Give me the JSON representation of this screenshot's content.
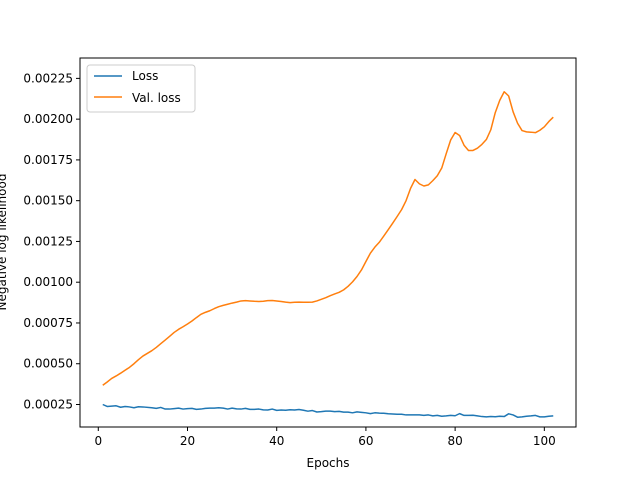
{
  "chart_data": {
    "type": "line",
    "title": "",
    "xlabel": "Epochs",
    "ylabel": "Negative log likelihood",
    "xlim": [
      -4.1,
      107.1
    ],
    "ylim": [
      0.000112,
      0.002375
    ],
    "xticks": [
      0,
      20,
      40,
      60,
      80,
      100
    ],
    "yticks": [
      0.00025,
      0.0005,
      0.00075,
      0.001,
      0.00125,
      0.0015,
      0.00175,
      0.002,
      0.00225
    ],
    "ytick_labels": [
      "0.00025",
      "0.00050",
      "0.00075",
      "0.00100",
      "0.00125",
      "0.00150",
      "0.00175",
      "0.00200",
      "0.00225"
    ],
    "xtick_labels": [
      "0",
      "20",
      "40",
      "60",
      "80",
      "100"
    ],
    "grid": false,
    "legend_position": "top-left",
    "series": [
      {
        "name": "Loss",
        "color": "#1f77b4",
        "points": [
          [
            1,
            0.00025
          ],
          [
            2,
            0.000238
          ],
          [
            3,
            0.00024
          ],
          [
            4,
            0.000242
          ],
          [
            5,
            0.000233
          ],
          [
            6,
            0.000238
          ],
          [
            7,
            0.000235
          ],
          [
            8,
            0.00023
          ],
          [
            9,
            0.000236
          ],
          [
            10,
            0.000235
          ],
          [
            12,
            0.00023
          ],
          [
            13,
            0.000226
          ],
          [
            14,
            0.000232
          ],
          [
            15,
            0.000222
          ],
          [
            16,
            0.000222
          ],
          [
            17,
            0.000225
          ],
          [
            18,
            0.000228
          ],
          [
            19,
            0.000222
          ],
          [
            20,
            0.000225
          ],
          [
            21,
            0.000226
          ],
          [
            22,
            0.00022
          ],
          [
            23,
            0.000222
          ],
          [
            24,
            0.000226
          ],
          [
            25,
            0.000228
          ],
          [
            26,
            0.000228
          ],
          [
            27,
            0.00023
          ],
          [
            28,
            0.000228
          ],
          [
            29,
            0.000222
          ],
          [
            30,
            0.000228
          ],
          [
            31,
            0.000223
          ],
          [
            32,
            0.000222
          ],
          [
            33,
            0.000226
          ],
          [
            34,
            0.00022
          ],
          [
            35,
            0.00022
          ],
          [
            36,
            0.000222
          ],
          [
            37,
            0.000217
          ],
          [
            38,
            0.000216
          ],
          [
            39,
            0.000222
          ],
          [
            40,
            0.000214
          ],
          [
            41,
            0.000216
          ],
          [
            42,
            0.000215
          ],
          [
            43,
            0.000218
          ],
          [
            44,
            0.000216
          ],
          [
            45,
            0.000219
          ],
          [
            46,
            0.000215
          ],
          [
            47,
            0.000209
          ],
          [
            48,
            0.000213
          ],
          [
            49,
            0.000204
          ],
          [
            50,
            0.000206
          ],
          [
            51,
            0.000209
          ],
          [
            52,
            0.000209
          ],
          [
            53,
            0.000206
          ],
          [
            54,
            0.000208
          ],
          [
            55,
            0.000203
          ],
          [
            56,
            0.000203
          ],
          [
            57,
            0.000199
          ],
          [
            58,
            0.000205
          ],
          [
            59,
            0.000202
          ],
          [
            60,
            0.000199
          ],
          [
            61,
            0.000194
          ],
          [
            62,
            0.000199
          ],
          [
            63,
            0.000197
          ],
          [
            64,
            0.000196
          ],
          [
            65,
            0.000193
          ],
          [
            66,
            0.000192
          ],
          [
            67,
            0.00019
          ],
          [
            68,
            0.00019
          ],
          [
            69,
            0.000186
          ],
          [
            70,
            0.000186
          ],
          [
            71,
            0.000186
          ],
          [
            72,
            0.000186
          ],
          [
            73,
            0.000183
          ],
          [
            74,
            0.000186
          ],
          [
            75,
            0.00018
          ],
          [
            76,
            0.000183
          ],
          [
            77,
            0.000178
          ],
          [
            78,
            0.00018
          ],
          [
            79,
            0.000183
          ],
          [
            80,
            0.000181
          ],
          [
            81,
            0.000194
          ],
          [
            82,
            0.000183
          ],
          [
            83,
            0.000183
          ],
          [
            84,
            0.000184
          ],
          [
            85,
            0.00018
          ],
          [
            86,
            0.000176
          ],
          [
            87,
            0.000174
          ],
          [
            88,
            0.000176
          ],
          [
            89,
            0.000175
          ],
          [
            90,
            0.000178
          ],
          [
            91,
            0.000176
          ],
          [
            92,
            0.000193
          ],
          [
            93,
            0.000186
          ],
          [
            94,
            0.000172
          ],
          [
            95,
            0.000174
          ],
          [
            96,
            0.000178
          ],
          [
            97,
            0.00018
          ],
          [
            98,
            0.000183
          ],
          [
            99,
            0.000174
          ],
          [
            100,
            0.000174
          ],
          [
            101,
            0.000178
          ],
          [
            102,
            0.00018
          ]
        ]
      },
      {
        "name": "Val. loss",
        "color": "#ff7f0e",
        "points": [
          [
            1,
            0.000368
          ],
          [
            2,
            0.000388
          ],
          [
            3,
            0.00041
          ],
          [
            4,
            0.000425
          ],
          [
            5,
            0.000442
          ],
          [
            6,
            0.00046
          ],
          [
            7,
            0.000478
          ],
          [
            8,
            0.0005
          ],
          [
            9,
            0.000525
          ],
          [
            10,
            0.000547
          ],
          [
            12,
            0.00058
          ],
          [
            13,
            0.0006
          ],
          [
            14,
            0.000623
          ],
          [
            15,
            0.000645
          ],
          [
            16,
            0.000668
          ],
          [
            17,
            0.000692
          ],
          [
            18,
            0.000711
          ],
          [
            19,
            0.000727
          ],
          [
            20,
            0.000744
          ],
          [
            21,
            0.000762
          ],
          [
            22,
            0.000783
          ],
          [
            23,
            0.000803
          ],
          [
            24,
            0.000815
          ],
          [
            25,
            0.000825
          ],
          [
            26,
            0.000838
          ],
          [
            27,
            0.00085
          ],
          [
            28,
            0.000858
          ],
          [
            29,
            0.000865
          ],
          [
            30,
            0.000872
          ],
          [
            31,
            0.000878
          ],
          [
            32,
            0.000885
          ],
          [
            33,
            0.000887
          ],
          [
            34,
            0.000885
          ],
          [
            35,
            0.000883
          ],
          [
            36,
            0.000882
          ],
          [
            37,
            0.000883
          ],
          [
            38,
            0.000887
          ],
          [
            39,
            0.000888
          ],
          [
            40,
            0.000885
          ],
          [
            41,
            0.000882
          ],
          [
            42,
            0.000878
          ],
          [
            43,
            0.000875
          ],
          [
            44,
            0.000877
          ],
          [
            45,
            0.000878
          ],
          [
            46,
            0.000877
          ],
          [
            47,
            0.000877
          ],
          [
            48,
            0.000878
          ],
          [
            49,
            0.000885
          ],
          [
            50,
            0.000895
          ],
          [
            51,
            0.000905
          ],
          [
            52,
            0.000917
          ],
          [
            53,
            0.000928
          ],
          [
            54,
            0.000938
          ],
          [
            55,
            0.000953
          ],
          [
            56,
            0.000975
          ],
          [
            57,
            0.001002
          ],
          [
            58,
            0.001035
          ],
          [
            59,
            0.001075
          ],
          [
            60,
            0.001127
          ],
          [
            61,
            0.001178
          ],
          [
            62,
            0.001215
          ],
          [
            63,
            0.001245
          ],
          [
            64,
            0.001283
          ],
          [
            65,
            0.001322
          ],
          [
            66,
            0.001362
          ],
          [
            67,
            0.001403
          ],
          [
            68,
            0.001445
          ],
          [
            69,
            0.0015
          ],
          [
            70,
            0.001575
          ],
          [
            71,
            0.00163
          ],
          [
            72,
            0.001603
          ],
          [
            73,
            0.00159
          ],
          [
            74,
            0.001597
          ],
          [
            75,
            0.001623
          ],
          [
            76,
            0.001653
          ],
          [
            77,
            0.0017
          ],
          [
            78,
            0.001788
          ],
          [
            79,
            0.001872
          ],
          [
            80,
            0.001918
          ],
          [
            81,
            0.0019
          ],
          [
            82,
            0.00184
          ],
          [
            83,
            0.001808
          ],
          [
            84,
            0.001808
          ],
          [
            85,
            0.001822
          ],
          [
            86,
            0.001845
          ],
          [
            87,
            0.001875
          ],
          [
            88,
            0.001935
          ],
          [
            89,
            0.00204
          ],
          [
            90,
            0.002115
          ],
          [
            91,
            0.002168
          ],
          [
            92,
            0.002142
          ],
          [
            93,
            0.002045
          ],
          [
            94,
            0.001975
          ],
          [
            95,
            0.00193
          ],
          [
            96,
            0.001922
          ],
          [
            97,
            0.00192
          ],
          [
            98,
            0.001917
          ],
          [
            99,
            0.001932
          ],
          [
            100,
            0.001953
          ],
          [
            101,
            0.001985
          ],
          [
            102,
            0.002012
          ]
        ]
      }
    ]
  }
}
